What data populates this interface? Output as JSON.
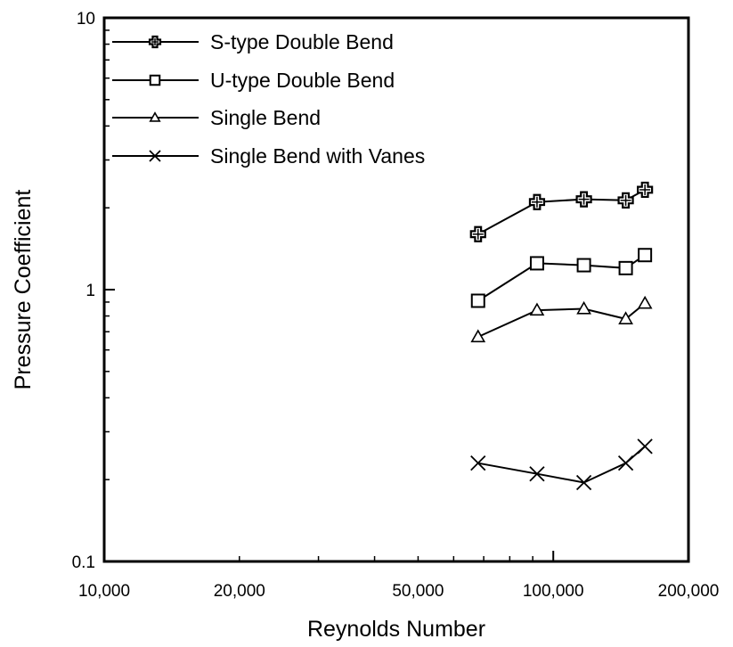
{
  "chart_data": {
    "type": "line",
    "title": "",
    "xlabel": "Reynolds Number",
    "ylabel": "Pressure Coefficient",
    "xscale": "log",
    "yscale": "log",
    "xlim": [
      10000,
      200000
    ],
    "ylim": [
      0.1,
      10
    ],
    "grid": false,
    "legend_position": "top-left",
    "x_ticks": [
      {
        "value": 10000,
        "label": "10,000"
      },
      {
        "value": 20000,
        "label": "20,000"
      },
      {
        "value": 50000,
        "label": "50,000"
      },
      {
        "value": 100000,
        "label": "100,000"
      },
      {
        "value": 200000,
        "label": "200,000"
      }
    ],
    "y_ticks": [
      {
        "value": 0.1,
        "label": "0.1"
      },
      {
        "value": 1,
        "label": "1"
      },
      {
        "value": 10,
        "label": "10"
      }
    ],
    "series": [
      {
        "name": "S-type Double Bend",
        "marker": "cross",
        "x": [
          68000,
          92000,
          117000,
          145000,
          160000
        ],
        "y": [
          1.6,
          2.1,
          2.15,
          2.13,
          2.33
        ]
      },
      {
        "name": "U-type Double Bend",
        "marker": "square",
        "x": [
          68000,
          92000,
          117000,
          145000,
          160000
        ],
        "y": [
          0.91,
          1.25,
          1.23,
          1.2,
          1.34
        ]
      },
      {
        "name": "Single Bend",
        "marker": "triangle",
        "x": [
          68000,
          92000,
          117000,
          145000,
          160000
        ],
        "y": [
          0.67,
          0.84,
          0.85,
          0.78,
          0.89
        ]
      },
      {
        "name": "Single Bend with Vanes",
        "marker": "x",
        "x": [
          68000,
          92000,
          117000,
          145000,
          160000
        ],
        "y": [
          0.23,
          0.21,
          0.195,
          0.23,
          0.265
        ]
      }
    ]
  }
}
